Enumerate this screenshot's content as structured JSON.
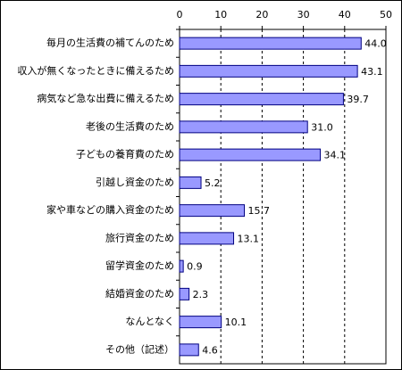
{
  "chart_data": {
    "type": "bar",
    "orientation": "horizontal",
    "categories": [
      "毎月の生活費の補てんのため",
      "収入が無くなったときに備えるため",
      "病気など急な出費に備えるため",
      "老後の生活費のため",
      "子どもの養育費のため",
      "引越し資金のため",
      "家や車などの購入資金のため",
      "旅行資金のため",
      "留学資金のため",
      "結婚資金のため",
      "なんとなく",
      "その他（記述）"
    ],
    "values": [
      44.0,
      43.1,
      39.7,
      31.0,
      34.1,
      5.2,
      15.7,
      13.1,
      0.9,
      2.3,
      10.1,
      4.6
    ],
    "value_labels": [
      "44.0",
      "43.1",
      "39.7",
      "31.0",
      "34.1",
      "5.2",
      "15.7",
      "13.1",
      "0.9",
      "2.3",
      "10.1",
      "4.6"
    ],
    "color": "#9999ff",
    "xlim": [
      0,
      50
    ],
    "xticks": [
      0,
      10,
      20,
      30,
      40,
      50
    ],
    "grid": true
  }
}
